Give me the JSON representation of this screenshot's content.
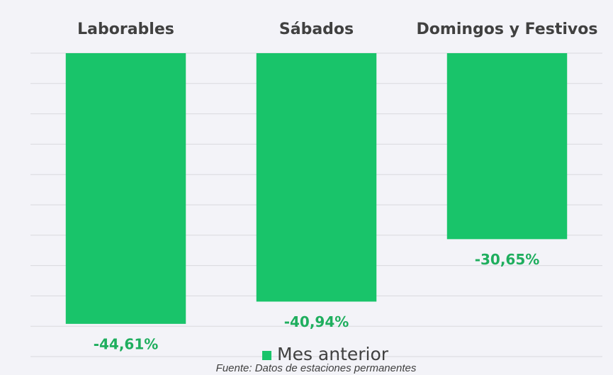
{
  "chart_data": {
    "type": "bar",
    "categories": [
      "Laborables",
      "Sábados",
      "Domingos y Festivos"
    ],
    "series": [
      {
        "name": "Mes anterior",
        "color": "#19c46a",
        "values": [
          -44.61,
          -40.94,
          -30.65
        ],
        "value_labels": [
          "-44,61%",
          "-40,94%",
          "-30,65%"
        ]
      }
    ],
    "ylim": [
      -50,
      0
    ],
    "yticks": [
      -50,
      -45,
      -40,
      -35,
      -30,
      -25,
      -20,
      -15,
      -10,
      -5,
      0
    ],
    "grid": true,
    "source": "Fuente: Datos de estaciones permanentes"
  }
}
